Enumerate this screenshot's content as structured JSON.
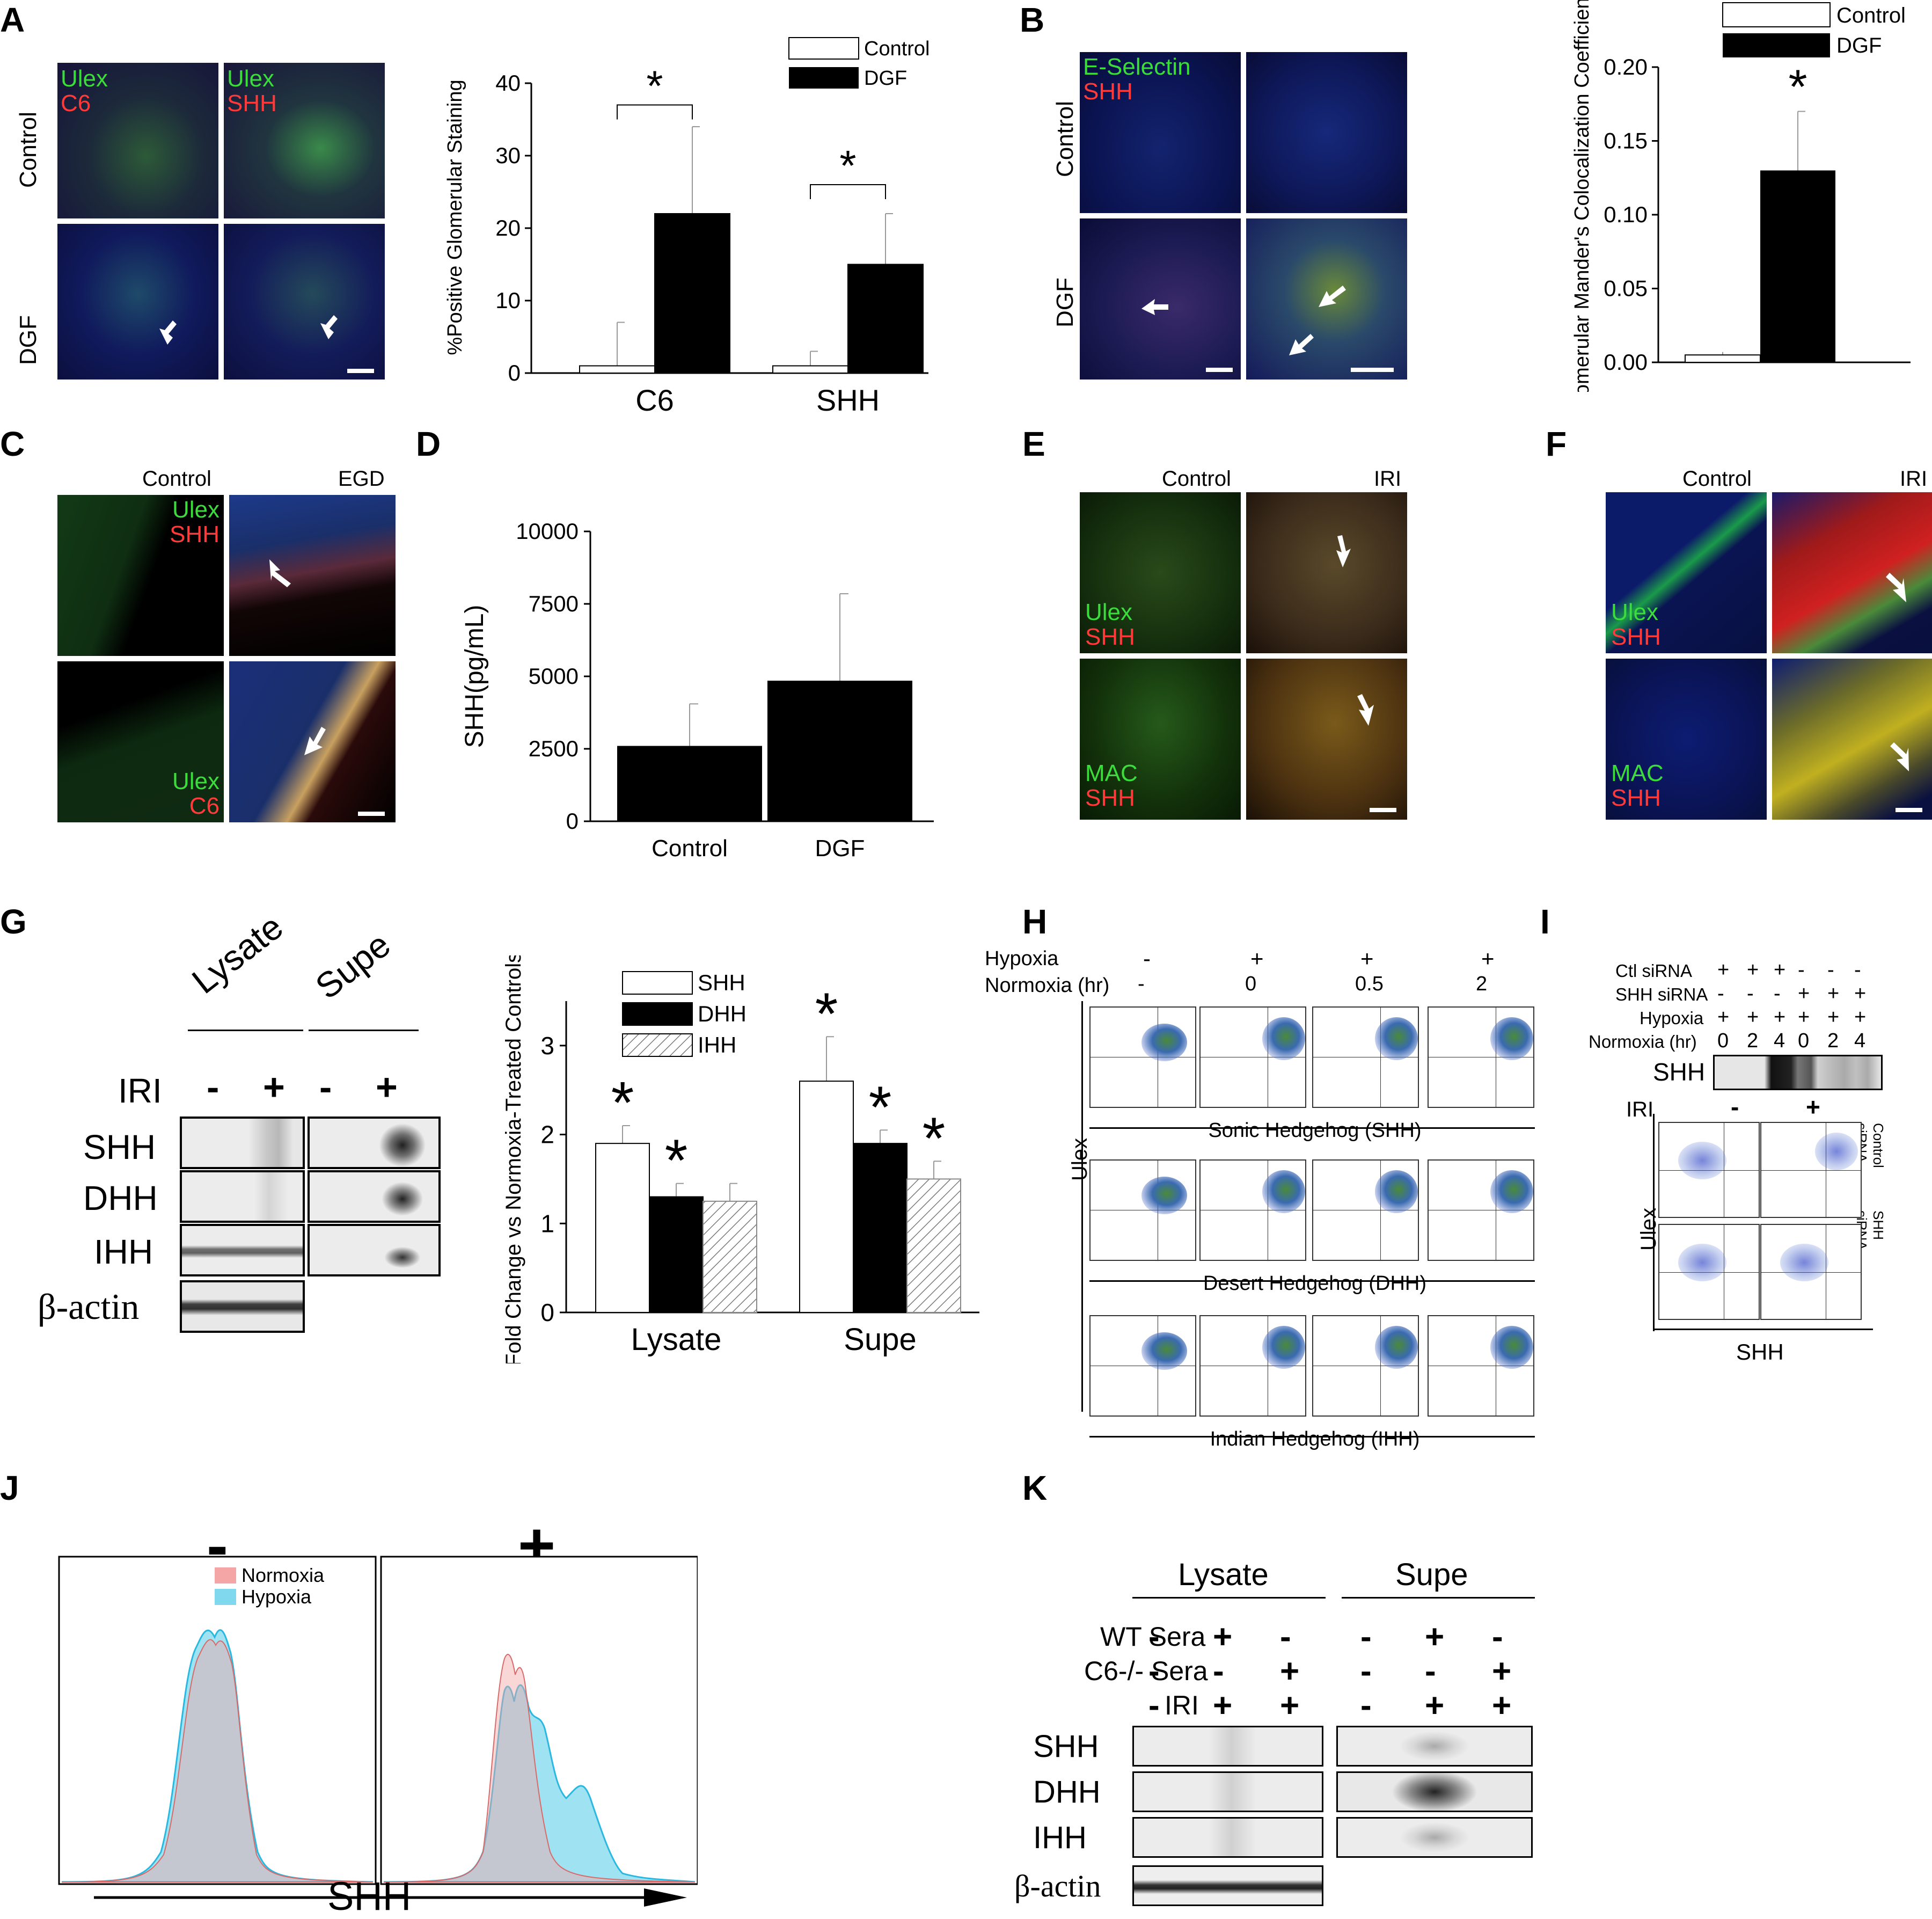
{
  "panels": {
    "A": {
      "label": "A",
      "rows": [
        "Control",
        "DGF"
      ],
      "img_tl": [
        "Ulex",
        "C6"
      ],
      "img_tr": [
        "Ulex",
        "SHH"
      ],
      "chart": {
        "type": "bar",
        "categories": [
          "C6",
          "SHH"
        ],
        "ylabel": "%Positive Glomerular Staining",
        "ylim": [
          0,
          40
        ],
        "yticks": [
          "0",
          "10",
          "20",
          "30",
          "40"
        ],
        "legend": [
          "Control",
          "DGF"
        ],
        "star": "*"
      }
    },
    "B": {
      "label": "B",
      "rows": [
        "Control",
        "DGF"
      ],
      "img_tl": [
        "E-Selectin",
        "SHH"
      ],
      "chart": {
        "type": "bar",
        "ylabel": "Glomerular Mander's Colocalization Coefficient",
        "ylim": [
          0,
          0.2
        ],
        "yticks": [
          "0.00",
          "0.05",
          "0.10",
          "0.15",
          "0.20"
        ],
        "legend": [
          "Control",
          "DGF"
        ],
        "star": "*"
      }
    },
    "C": {
      "label": "C",
      "cols": [
        "Control",
        "EGD"
      ],
      "img_tl": [
        "Ulex",
        "SHH"
      ],
      "img_bl": [
        "Ulex",
        "C6"
      ]
    },
    "D": {
      "label": "D",
      "chart": {
        "type": "bar",
        "categories": [
          "Control",
          "DGF"
        ],
        "ylabel": "SHH(pg/mL)",
        "ylim": [
          0,
          10000
        ],
        "yticks": [
          "0",
          "2500",
          "5000",
          "7500",
          "10000"
        ]
      }
    },
    "E": {
      "label": "E",
      "cols": [
        "Control",
        "IRI"
      ],
      "img_tl": [
        "Ulex",
        "SHH"
      ],
      "img_bl": [
        "MAC",
        "SHH"
      ]
    },
    "F": {
      "label": "F",
      "cols": [
        "Control",
        "IRI"
      ],
      "img_tl": [
        "Ulex",
        "SHH"
      ],
      "img_bl": [
        "MAC",
        "SHH"
      ]
    },
    "G": {
      "label": "G",
      "blot_groups": [
        "Lysate",
        "Supe"
      ],
      "iri_label": "IRI",
      "iri_signs": [
        "-",
        "+",
        "-",
        "+"
      ],
      "rows": [
        "SHH",
        "DHH",
        "IHH",
        "β-actin"
      ],
      "chart": {
        "type": "bar",
        "categories": [
          "Lysate",
          "Supe"
        ],
        "ylabel": "Fold Change vs Normoxia-Treated Controls",
        "ylim": [
          0,
          3.5
        ],
        "yticks": [
          "0",
          "1",
          "2",
          "3"
        ],
        "legend": [
          "SHH",
          "DHH",
          "IHH"
        ],
        "star": "*"
      }
    },
    "H": {
      "label": "H",
      "hypoxia_label": "Hypoxia",
      "normoxia_label": "Normoxia (hr)",
      "hypoxia_signs": [
        "-",
        "+",
        "+",
        "+"
      ],
      "normoxia_vals": [
        "-",
        "0",
        "0.5",
        "2"
      ],
      "row_labels": [
        "Sonic Hedgehog (SHH)",
        "Desert Hedgehog (DHH)",
        "Indian Hedgehog (IHH)"
      ],
      "y_axis": "Ulex"
    },
    "I": {
      "label": "I",
      "rows": [
        {
          "label": "Ctl siRNA",
          "signs": [
            "+",
            "+",
            "+",
            "-",
            "-",
            "-"
          ]
        },
        {
          "label": "SHH siRNA",
          "signs": [
            "-",
            "-",
            "-",
            "+",
            "+",
            "+"
          ]
        },
        {
          "label": "Hypoxia",
          "signs": [
            "+",
            "+",
            "+",
            "+",
            "+",
            "+"
          ]
        },
        {
          "label": "Normoxia (hr)",
          "signs": [
            "0",
            "2",
            "4",
            "0",
            "2",
            "4"
          ]
        }
      ],
      "blot_label": "SHH",
      "iri_label": "IRI",
      "iri_signs": [
        "-",
        "+"
      ],
      "side_labels": [
        "Control siRNA",
        "SHH siRNA"
      ],
      "x_axis": "SHH",
      "y_axis": "Ulex"
    },
    "J": {
      "label": "J",
      "signs": [
        "-",
        "+"
      ],
      "legend": [
        "Normoxia",
        "Hypoxia"
      ],
      "x_axis": "SHH"
    },
    "K": {
      "label": "K",
      "groups": [
        "Lysate",
        "Supe"
      ],
      "cond_rows": [
        {
          "label": "WT Sera",
          "signs": [
            "-",
            "+",
            "-",
            "-",
            "+",
            "-"
          ]
        },
        {
          "label": "C6-/- Sera",
          "signs": [
            "-",
            "-",
            "+",
            "-",
            "-",
            "+"
          ]
        },
        {
          "label": "IRI",
          "signs": [
            "-",
            "+",
            "+",
            "-",
            "+",
            "+"
          ]
        }
      ],
      "blot_rows": [
        "SHH",
        "DHH",
        "IHH",
        "β-actin"
      ]
    }
  },
  "chart_data": [
    {
      "panel": "A",
      "type": "bar",
      "categories": [
        "C6",
        "SHH"
      ],
      "series": [
        {
          "name": "Control",
          "values": [
            1,
            1
          ],
          "err": [
            6,
            2
          ]
        },
        {
          "name": "DGF",
          "values": [
            22,
            15
          ],
          "err": [
            12,
            7
          ]
        }
      ],
      "ylabel": "%Positive Glomerular Staining",
      "ylim": [
        0,
        40
      ]
    },
    {
      "panel": "B",
      "type": "bar",
      "categories": [
        "",
        ""
      ],
      "series": [
        {
          "name": "Control",
          "values": [
            0.005,
            null
          ],
          "err": [
            0.002,
            null
          ]
        },
        {
          "name": "DGF",
          "values": [
            null,
            0.13
          ],
          "err": [
            null,
            0.04
          ]
        }
      ],
      "ylabel": "Glomerular Mander's Colocalization Coefficient",
      "ylim": [
        0,
        0.2
      ]
    },
    {
      "panel": "D",
      "type": "bar",
      "categories": [
        "Control",
        "DGF"
      ],
      "values": [
        2600,
        4850
      ],
      "err": [
        1450,
        3000
      ],
      "ylabel": "SHH(pg/mL)",
      "ylim": [
        0,
        10000
      ]
    },
    {
      "panel": "G",
      "type": "bar",
      "categories": [
        "Lysate",
        "Supe"
      ],
      "series": [
        {
          "name": "SHH",
          "values": [
            1.9,
            2.6
          ],
          "err": [
            0.2,
            0.5
          ]
        },
        {
          "name": "DHH",
          "values": [
            1.3,
            1.9
          ],
          "err": [
            0.15,
            0.15
          ]
        },
        {
          "name": "IHH",
          "values": [
            1.25,
            1.5
          ],
          "err": [
            0.2,
            0.2
          ]
        }
      ],
      "ylabel": "Fold Change vs Normoxia-Treated Controls",
      "ylim": [
        0,
        3.5
      ]
    }
  ],
  "colors": {
    "dgf": "#000000",
    "control": "#ffffff",
    "ulex": "#2fd12f",
    "shh": "#ff2020",
    "normoxia": "#f4a6a6",
    "hypoxia": "#7fd8ee"
  }
}
